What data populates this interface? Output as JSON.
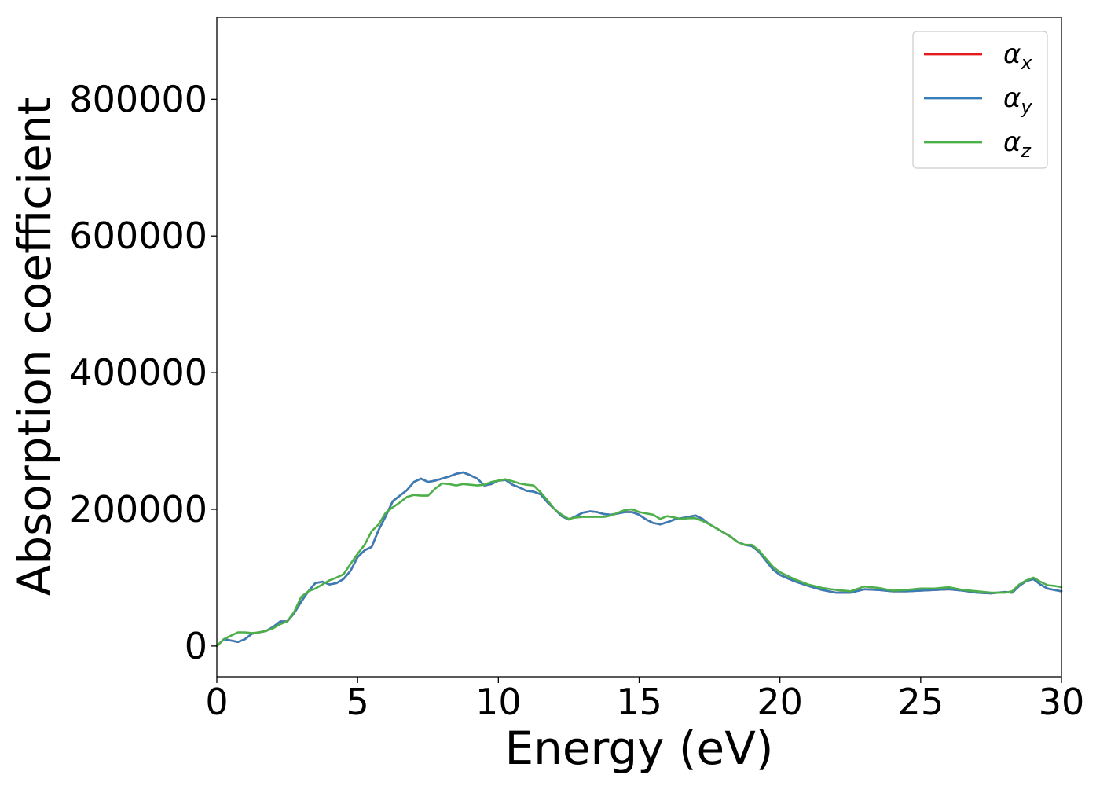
{
  "chart_data": {
    "type": "line",
    "xlabel": "Energy (eV)",
    "ylabel": "Absorption coefficient",
    "xlim": [
      0,
      30
    ],
    "ylim": [
      -45000,
      920000
    ],
    "xticks": [
      0,
      5,
      10,
      15,
      20,
      25,
      30
    ],
    "yticks": [
      0,
      200000,
      400000,
      600000,
      800000
    ],
    "grid": false,
    "legend_position": "top-right",
    "series": [
      {
        "name": "α_x",
        "label_base": "α",
        "label_sub": "x",
        "color": "#e41a1c",
        "x": [
          0,
          0.25,
          0.5,
          0.75,
          1.0,
          1.25,
          1.5,
          1.75,
          2.0,
          2.25,
          2.5,
          2.75,
          3.0,
          3.25,
          3.5,
          3.75,
          4.0,
          4.25,
          4.5,
          4.75,
          5.0,
          5.25,
          5.5,
          5.75,
          6.0,
          6.25,
          6.5,
          6.75,
          7.0,
          7.25,
          7.5,
          7.75,
          8.0,
          8.25,
          8.5,
          8.75,
          9.0,
          9.25,
          9.5,
          9.75,
          10.0,
          10.25,
          10.5,
          10.75,
          11.0,
          11.25,
          11.5,
          11.75,
          12.0,
          12.25,
          12.5,
          12.75,
          13.0,
          13.25,
          13.5,
          13.75,
          14.0,
          14.25,
          14.5,
          14.75,
          15.0,
          15.25,
          15.5,
          15.75,
          16.0,
          16.25,
          16.5,
          16.75,
          17.0,
          17.25,
          17.5,
          17.75,
          18.0,
          18.25,
          18.5,
          18.75,
          19.0,
          19.25,
          19.5,
          19.75,
          20.0,
          20.5,
          21.0,
          21.5,
          22.0,
          22.5,
          23.0,
          23.5,
          24.0,
          24.5,
          25.0,
          25.5,
          26.0,
          26.5,
          27.0,
          27.5,
          28.0,
          28.25,
          28.5,
          28.75,
          29.0,
          29.25,
          29.5,
          29.75,
          30.0
        ],
        "y": [
          0,
          10000,
          8000,
          6000,
          10000,
          18000,
          20000,
          22000,
          28000,
          36000,
          36000,
          48000,
          65000,
          80000,
          92000,
          94000,
          90000,
          92000,
          98000,
          110000,
          130000,
          140000,
          145000,
          170000,
          190000,
          212000,
          220000,
          228000,
          240000,
          245000,
          240000,
          242000,
          245000,
          248000,
          252000,
          254000,
          250000,
          245000,
          235000,
          237000,
          242000,
          243000,
          236000,
          232000,
          227000,
          226000,
          222000,
          210000,
          200000,
          190000,
          185000,
          190000,
          195000,
          197000,
          196000,
          193000,
          192000,
          194000,
          196000,
          196000,
          192000,
          185000,
          180000,
          178000,
          181000,
          185000,
          187000,
          189000,
          191000,
          186000,
          178000,
          172000,
          166000,
          160000,
          152000,
          148000,
          146000,
          138000,
          125000,
          112000,
          104000,
          95000,
          88000,
          82000,
          78000,
          78000,
          83000,
          82000,
          80000,
          80000,
          81000,
          82000,
          83000,
          81000,
          78000,
          77000,
          79000,
          78000,
          88000,
          95000,
          98000,
          90000,
          84000,
          82000,
          80000
        ]
      },
      {
        "name": "α_y",
        "label_base": "α",
        "label_sub": "y",
        "color": "#377eb8",
        "x": [
          0,
          0.25,
          0.5,
          0.75,
          1.0,
          1.25,
          1.5,
          1.75,
          2.0,
          2.25,
          2.5,
          2.75,
          3.0,
          3.25,
          3.5,
          3.75,
          4.0,
          4.25,
          4.5,
          4.75,
          5.0,
          5.25,
          5.5,
          5.75,
          6.0,
          6.25,
          6.5,
          6.75,
          7.0,
          7.25,
          7.5,
          7.75,
          8.0,
          8.25,
          8.5,
          8.75,
          9.0,
          9.25,
          9.5,
          9.75,
          10.0,
          10.25,
          10.5,
          10.75,
          11.0,
          11.25,
          11.5,
          11.75,
          12.0,
          12.25,
          12.5,
          12.75,
          13.0,
          13.25,
          13.5,
          13.75,
          14.0,
          14.25,
          14.5,
          14.75,
          15.0,
          15.25,
          15.5,
          15.75,
          16.0,
          16.25,
          16.5,
          16.75,
          17.0,
          17.25,
          17.5,
          17.75,
          18.0,
          18.25,
          18.5,
          18.75,
          19.0,
          19.25,
          19.5,
          19.75,
          20.0,
          20.5,
          21.0,
          21.5,
          22.0,
          22.5,
          23.0,
          23.5,
          24.0,
          24.5,
          25.0,
          25.5,
          26.0,
          26.5,
          27.0,
          27.5,
          28.0,
          28.25,
          28.5,
          28.75,
          29.0,
          29.25,
          29.5,
          29.75,
          30.0
        ],
        "y": [
          0,
          10000,
          8000,
          6000,
          10000,
          18000,
          20000,
          22000,
          28000,
          36000,
          36000,
          48000,
          65000,
          80000,
          92000,
          94000,
          90000,
          92000,
          98000,
          110000,
          130000,
          140000,
          145000,
          170000,
          190000,
          212000,
          220000,
          228000,
          240000,
          245000,
          240000,
          242000,
          245000,
          248000,
          252000,
          254000,
          250000,
          245000,
          235000,
          237000,
          242000,
          243000,
          236000,
          232000,
          227000,
          226000,
          222000,
          210000,
          200000,
          190000,
          185000,
          190000,
          195000,
          197000,
          196000,
          193000,
          192000,
          194000,
          196000,
          196000,
          192000,
          185000,
          180000,
          178000,
          181000,
          185000,
          187000,
          189000,
          191000,
          186000,
          178000,
          172000,
          166000,
          160000,
          152000,
          148000,
          146000,
          138000,
          125000,
          112000,
          104000,
          95000,
          88000,
          82000,
          78000,
          78000,
          83000,
          82000,
          80000,
          80000,
          81000,
          82000,
          83000,
          81000,
          78000,
          77000,
          79000,
          78000,
          88000,
          95000,
          98000,
          90000,
          84000,
          82000,
          80000
        ]
      },
      {
        "name": "α_z",
        "label_base": "α",
        "label_sub": "z",
        "color": "#4daf4a",
        "x": [
          0,
          0.25,
          0.5,
          0.75,
          1.0,
          1.25,
          1.5,
          1.75,
          2.0,
          2.25,
          2.5,
          2.75,
          3.0,
          3.25,
          3.5,
          3.75,
          4.0,
          4.25,
          4.5,
          4.75,
          5.0,
          5.25,
          5.5,
          5.75,
          6.0,
          6.25,
          6.5,
          6.75,
          7.0,
          7.25,
          7.5,
          7.75,
          8.0,
          8.25,
          8.5,
          8.75,
          9.0,
          9.25,
          9.5,
          9.75,
          10.0,
          10.25,
          10.5,
          10.75,
          11.0,
          11.25,
          11.5,
          11.75,
          12.0,
          12.25,
          12.5,
          12.75,
          13.0,
          13.25,
          13.5,
          13.75,
          14.0,
          14.25,
          14.5,
          14.75,
          15.0,
          15.25,
          15.5,
          15.75,
          16.0,
          16.25,
          16.5,
          16.75,
          17.0,
          17.25,
          17.5,
          17.75,
          18.0,
          18.25,
          18.5,
          18.75,
          19.0,
          19.25,
          19.5,
          19.75,
          20.0,
          20.5,
          21.0,
          21.5,
          22.0,
          22.5,
          23.0,
          23.5,
          24.0,
          24.5,
          25.0,
          25.5,
          26.0,
          26.5,
          27.0,
          27.5,
          28.0,
          28.25,
          28.5,
          28.75,
          29.0,
          29.25,
          29.5,
          29.75,
          30.0
        ],
        "y": [
          0,
          10000,
          15000,
          20000,
          20000,
          19000,
          20000,
          22000,
          26000,
          32000,
          36000,
          50000,
          72000,
          80000,
          84000,
          90000,
          96000,
          100000,
          105000,
          120000,
          135000,
          148000,
          168000,
          178000,
          195000,
          203000,
          210000,
          218000,
          221000,
          220000,
          220000,
          230000,
          238000,
          237000,
          235000,
          237000,
          236000,
          235000,
          236000,
          240000,
          242000,
          244000,
          241000,
          238000,
          236000,
          235000,
          225000,
          213000,
          200000,
          192000,
          186000,
          188000,
          189000,
          189000,
          189000,
          189000,
          191000,
          195000,
          199000,
          200000,
          196000,
          194000,
          192000,
          186000,
          190000,
          188000,
          186000,
          187000,
          187000,
          183000,
          178000,
          172000,
          166000,
          160000,
          152000,
          148000,
          148000,
          140000,
          128000,
          116000,
          108000,
          98000,
          90000,
          85000,
          82000,
          80000,
          87000,
          85000,
          81000,
          82000,
          84000,
          84000,
          86000,
          82000,
          80000,
          78000,
          78000,
          80000,
          90000,
          96000,
          100000,
          94000,
          89000,
          88000,
          86000
        ]
      }
    ]
  }
}
